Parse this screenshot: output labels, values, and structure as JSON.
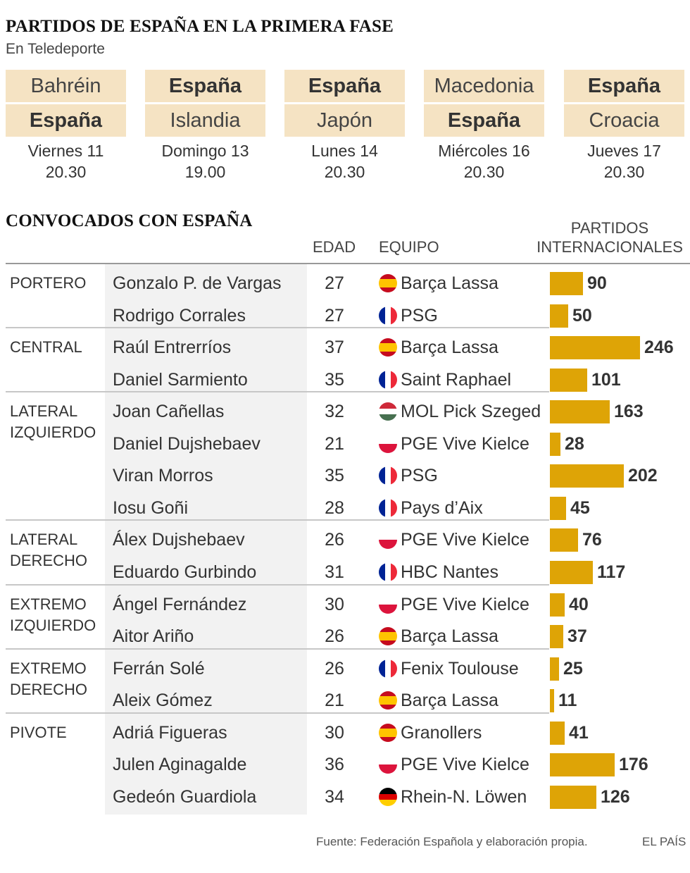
{
  "header": {
    "title": "PARTIDOS DE ESPAÑA EN LA PRIMERA FASE",
    "subtitle": "En Teledeporte"
  },
  "matches": [
    {
      "home": "Bahréin",
      "away": "España",
      "bold": "away",
      "day": "Viernes 11",
      "time": "20.30"
    },
    {
      "home": "España",
      "away": "Islandia",
      "bold": "home",
      "day": "Domingo 13",
      "time": "19.00"
    },
    {
      "home": "España",
      "away": "Japón",
      "bold": "home",
      "day": "Lunes 14",
      "time": "20.30"
    },
    {
      "home": "Macedonia",
      "away": "España",
      "bold": "away",
      "day": "Miércoles 16",
      "time": "20.30"
    },
    {
      "home": "España",
      "away": "Croacia",
      "bold": "home",
      "day": "Jueves 17",
      "time": "20.30"
    }
  ],
  "squad_title": "CONVOCADOS CON ESPAÑA",
  "columns": {
    "age": "EDAD",
    "team": "EQUIPO",
    "caps_line1": "PARTIDOS",
    "caps_line2": "INTERNACIONALES"
  },
  "colors": {
    "bar": "#dea406",
    "team_box": "#f5e3c3",
    "name_column_bg": "#f2f2f2"
  },
  "chart_data": {
    "type": "bar",
    "orientation": "horizontal",
    "title": "CONVOCADOS CON ESPAÑA",
    "value_label": "PARTIDOS INTERNACIONALES",
    "data_labels": true,
    "groups": [
      {
        "position": "PORTERO",
        "players": [
          {
            "name": "Gonzalo P. de Vargas",
            "age": 27,
            "club": "Barça Lassa",
            "flag": "spain-flag-icon",
            "caps": 90
          },
          {
            "name": "Rodrigo Corrales",
            "age": 27,
            "club": "PSG",
            "flag": "france-flag-icon",
            "caps": 50
          }
        ]
      },
      {
        "position": "CENTRAL",
        "players": [
          {
            "name": "Raúl Entrerríos",
            "age": 37,
            "club": "Barça Lassa",
            "flag": "spain-flag-icon",
            "caps": 246
          },
          {
            "name": "Daniel Sarmiento",
            "age": 35,
            "club": "Saint Raphael",
            "flag": "france-flag-icon",
            "caps": 101
          }
        ]
      },
      {
        "position": "LATERAL\nIZQUIERDO",
        "players": [
          {
            "name": "Joan Cañellas",
            "age": 32,
            "club": "MOL Pick Szeged",
            "flag": "hungary-flag-icon",
            "caps": 163
          },
          {
            "name": "Daniel Dujshebaev",
            "age": 21,
            "club": "PGE Vive Kielce",
            "flag": "poland-flag-icon",
            "caps": 28
          },
          {
            "name": "Viran Morros",
            "age": 35,
            "club": "PSG",
            "flag": "france-flag-icon",
            "caps": 202
          },
          {
            "name": "Iosu Goñi",
            "age": 28,
            "club": "Pays d’Aix",
            "flag": "france-flag-icon",
            "caps": 45
          }
        ]
      },
      {
        "position": "LATERAL\nDERECHO",
        "players": [
          {
            "name": "Álex Dujshebaev",
            "age": 26,
            "club": "PGE Vive Kielce",
            "flag": "poland-flag-icon",
            "caps": 76
          },
          {
            "name": "Eduardo Gurbindo",
            "age": 31,
            "club": "HBC Nantes",
            "flag": "france-flag-icon",
            "caps": 117
          }
        ]
      },
      {
        "position": "EXTREMO\nIZQUIERDO",
        "players": [
          {
            "name": "Ángel Fernández",
            "age": 30,
            "club": "PGE Vive Kielce",
            "flag": "poland-flag-icon",
            "caps": 40
          },
          {
            "name": "Aitor Ariño",
            "age": 26,
            "club": "Barça Lassa",
            "flag": "spain-flag-icon",
            "caps": 37
          }
        ]
      },
      {
        "position": "EXTREMO\nDERECHO",
        "players": [
          {
            "name": "Ferrán Solé",
            "age": 26,
            "club": "Fenix Toulouse",
            "flag": "france-flag-icon",
            "caps": 25
          },
          {
            "name": "Aleix Gómez",
            "age": 21,
            "club": "Barça Lassa",
            "flag": "spain-flag-icon",
            "caps": 11
          }
        ]
      },
      {
        "position": "PIVOTE",
        "players": [
          {
            "name": "Adriá Figueras",
            "age": 30,
            "club": "Granollers",
            "flag": "spain-flag-icon",
            "caps": 41
          },
          {
            "name": "Julen Aginagalde",
            "age": 36,
            "club": "PGE Vive Kielce",
            "flag": "poland-flag-icon",
            "caps": 176
          },
          {
            "name": "Gedeón Guardiola",
            "age": 34,
            "club": "Rhein-N. Löwen",
            "flag": "germany-flag-icon",
            "caps": 126
          }
        ]
      }
    ]
  },
  "footer": {
    "source": "Fuente: Federación Española y elaboración propia.",
    "brand": "EL PAÍS"
  }
}
